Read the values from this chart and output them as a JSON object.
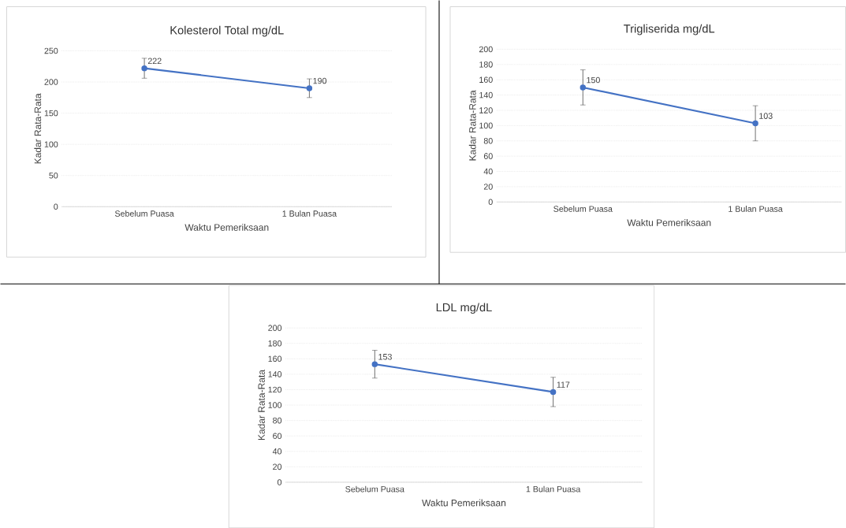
{
  "chart_data": [
    {
      "type": "line",
      "title": "Kolesterol Total mg/dL",
      "xlabel": "Waktu Pemeriksaan",
      "ylabel": "Kadar Rata-Rata",
      "categories": [
        "Sebelum Puasa",
        "1 Bulan Puasa"
      ],
      "values": [
        222,
        190
      ],
      "errors": [
        16,
        15
      ],
      "color": "#4472c4",
      "ylim": [
        0,
        250
      ],
      "yticks": [
        0,
        50,
        100,
        150,
        200,
        250
      ],
      "grid": "y",
      "data_labels": true,
      "marker": "circle"
    },
    {
      "type": "line",
      "title": "Trigliserida mg/dL",
      "xlabel": "Waktu Pemeriksaan",
      "ylabel": "Kadar Rata-Rata",
      "categories": [
        "Sebelum Puasa",
        "1 Bulan Puasa"
      ],
      "values": [
        150,
        103
      ],
      "errors": [
        23,
        23
      ],
      "color": "#4472c4",
      "ylim": [
        0,
        200
      ],
      "yticks": [
        0,
        20,
        40,
        60,
        80,
        100,
        120,
        140,
        160,
        180,
        200
      ],
      "grid": "y",
      "data_labels": true,
      "marker": "circle"
    },
    {
      "type": "line",
      "title": "LDL mg/dL",
      "xlabel": "Waktu Pemeriksaan",
      "ylabel": "Kadar Rata-Rata",
      "categories": [
        "Sebelum Puasa",
        "1 Bulan Puasa"
      ],
      "values": [
        153,
        117
      ],
      "errors": [
        18,
        19
      ],
      "color": "#4472c4",
      "ylim": [
        0,
        200
      ],
      "yticks": [
        0,
        20,
        40,
        60,
        80,
        100,
        120,
        140,
        160,
        180,
        200
      ],
      "grid": "y",
      "data_labels": true,
      "marker": "circle"
    }
  ]
}
